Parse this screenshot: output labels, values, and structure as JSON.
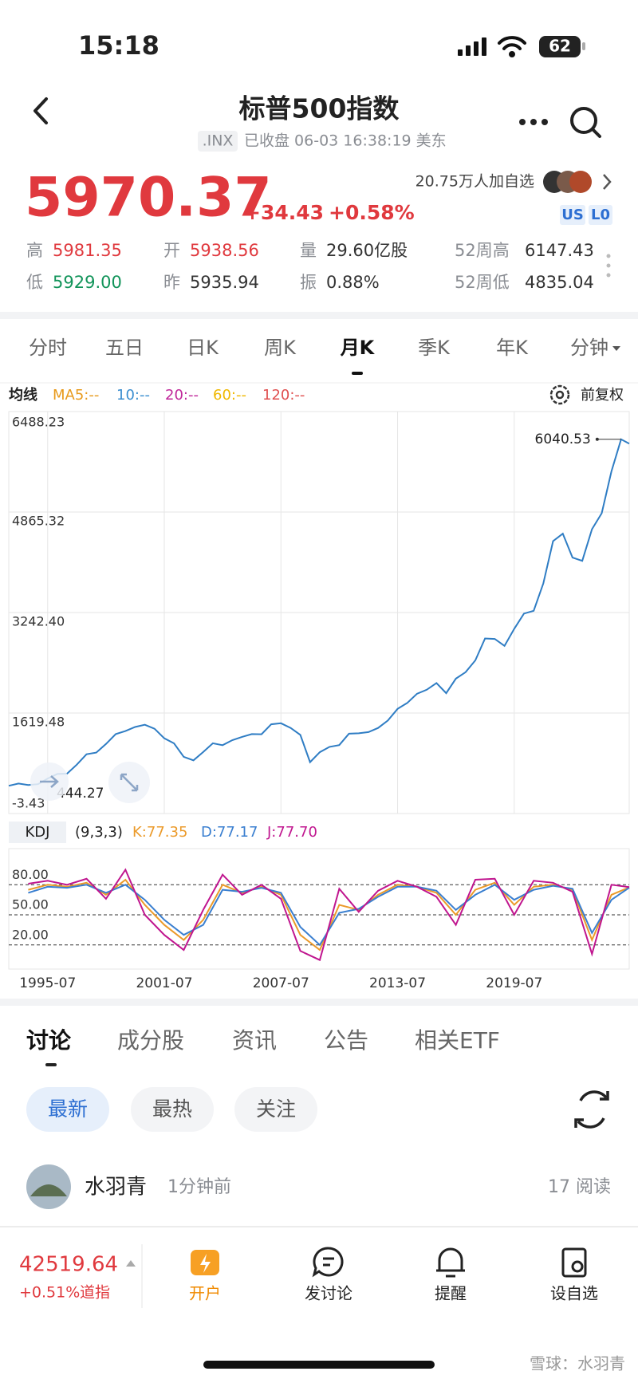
{
  "status_bar": {
    "time": "15:18",
    "battery": "62"
  },
  "header": {
    "title": "标普500指数",
    "code": ".INX",
    "status": "已收盘 06-03 16:38:19 美东"
  },
  "quote": {
    "price": "5970.37",
    "change": "+34.43",
    "change_pct": "+0.58%",
    "followers": "20.75万人加自选",
    "badges": [
      "US",
      "L0"
    ],
    "stats": [
      {
        "label": "高",
        "value": "5981.35"
      },
      {
        "label": "开",
        "value": "5938.56"
      },
      {
        "label": "量",
        "value": "29.60亿股"
      },
      {
        "label": "52周高",
        "value": "6147.43"
      },
      {
        "label": "低",
        "value": "5929.00"
      },
      {
        "label": "昨",
        "value": "5935.94"
      },
      {
        "label": "振",
        "value": "0.88%"
      },
      {
        "label": "52周低",
        "value": "4835.04"
      }
    ]
  },
  "period_tabs": [
    "分时",
    "五日",
    "日K",
    "周K",
    "月K",
    "季K",
    "年K",
    "分钟"
  ],
  "ma_legend": {
    "label": "均线",
    "items": [
      {
        "text": "MA5:--",
        "color": "#e89a1c"
      },
      {
        "text": "10:--",
        "color": "#3a8ed0"
      },
      {
        "text": "20:--",
        "color": "#c0279a"
      },
      {
        "text": "60:--",
        "color": "#f0b800"
      },
      {
        "text": "120:--",
        "color": "#e05050"
      }
    ]
  },
  "adjust": "前复权",
  "chart_data": [
    {
      "type": "line",
      "color": "#2f7dc4",
      "grid": true,
      "x": [
        "1993-07",
        "1994-01",
        "1994-07",
        "1995-01",
        "1995-07",
        "1996-01",
        "1996-07",
        "1997-01",
        "1997-07",
        "1998-01",
        "1998-07",
        "1999-01",
        "1999-07",
        "2000-01",
        "2000-07",
        "2001-01",
        "2001-07",
        "2002-01",
        "2002-07",
        "2003-01",
        "2003-07",
        "2004-01",
        "2004-07",
        "2005-01",
        "2005-07",
        "2006-01",
        "2006-07",
        "2007-01",
        "2007-07",
        "2008-01",
        "2008-07",
        "2009-01",
        "2009-07",
        "2010-01",
        "2010-07",
        "2011-01",
        "2011-07",
        "2012-01",
        "2012-07",
        "2013-01",
        "2013-07",
        "2014-01",
        "2014-07",
        "2015-01",
        "2015-07",
        "2016-01",
        "2016-07",
        "2017-01",
        "2017-07",
        "2018-01",
        "2018-07",
        "2019-01",
        "2019-07",
        "2020-01",
        "2020-07",
        "2021-01",
        "2021-07",
        "2022-01",
        "2022-07",
        "2023-01",
        "2023-07",
        "2024-01",
        "2024-07",
        "2025-01",
        "2025-06"
      ],
      "values": [
        444.27,
        481,
        458,
        470,
        562,
        636,
        640,
        786,
        954,
        980,
        1120,
        1280,
        1328,
        1394,
        1430,
        1366,
        1211,
        1130,
        912,
        856,
        990,
        1131,
        1101,
        1181,
        1234,
        1280,
        1277,
        1438,
        1455,
        1378,
        1267,
        826,
        987,
        1074,
        1102,
        1286,
        1292,
        1312,
        1379,
        1498,
        1686,
        1783,
        1931,
        1995,
        2104,
        1940,
        2174,
        2279,
        2470,
        2824,
        2816,
        2704,
        2980,
        3226,
        3271,
        3714,
        4395,
        4516,
        4130,
        4077,
        4589,
        4846,
        5522,
        6040.53,
        5970.37
      ],
      "xlim": [
        "1993-07",
        "2025-06"
      ],
      "ylim": [
        -3.43,
        6488.23
      ],
      "yticks": [
        6488.23,
        4865.32,
        {
          "value": 3242.4,
          "label": "3242.40"
        },
        1619.48,
        -3.43
      ],
      "xticks": [
        "1995-07",
        "2001-07",
        "2007-07",
        "2013-07",
        "2019-07"
      ],
      "max_label": 6040.53,
      "min_label": 444.27
    },
    {
      "type": "line",
      "title": "KDJ",
      "params": "(9,3,3)",
      "x": [
        "1994-07",
        "1995-07",
        "1996-07",
        "1997-07",
        "1998-07",
        "1999-07",
        "2000-07",
        "2001-07",
        "2002-07",
        "2003-07",
        "2004-07",
        "2005-07",
        "2006-07",
        "2007-07",
        "2008-07",
        "2009-07",
        "2010-07",
        "2011-07",
        "2012-07",
        "2013-07",
        "2014-07",
        "2015-07",
        "2016-07",
        "2017-07",
        "2018-07",
        "2019-07",
        "2020-07",
        "2021-07",
        "2022-07",
        "2023-07",
        "2024-07",
        "2025-06"
      ],
      "series": [
        {
          "name": "K:77.35",
          "color": "#eb9a2a",
          "values": [
            75,
            80,
            78,
            82,
            70,
            85,
            60,
            40,
            25,
            45,
            80,
            72,
            78,
            70,
            30,
            15,
            60,
            55,
            70,
            80,
            78,
            72,
            50,
            75,
            82,
            60,
            78,
            80,
            75,
            25,
            70,
            77.35
          ]
        },
        {
          "name": "D:77.17",
          "color": "#3a7fd0",
          "values": [
            72,
            78,
            77,
            80,
            72,
            80,
            65,
            45,
            30,
            40,
            75,
            73,
            77,
            72,
            38,
            20,
            52,
            56,
            68,
            78,
            78,
            74,
            55,
            70,
            80,
            65,
            75,
            79,
            76,
            32,
            65,
            77.17
          ]
        },
        {
          "name": "J:77.70",
          "color": "#c0168f",
          "values": [
            81,
            84,
            80,
            86,
            66,
            95,
            50,
            30,
            15,
            55,
            90,
            70,
            80,
            66,
            14,
            5,
            76,
            53,
            74,
            84,
            78,
            68,
            40,
            85,
            86,
            50,
            84,
            82,
            73,
            11,
            80,
            77.7
          ]
        }
      ],
      "xlim": [
        "1993-07",
        "2025-06"
      ],
      "ylim": [
        -4,
        116
      ],
      "yticks": [
        {
          "value": 80,
          "label": "80.00"
        },
        {
          "value": 50,
          "label": "50.00"
        },
        {
          "value": 20,
          "label": "20.00"
        }
      ]
    }
  ],
  "discussion": {
    "tabs": [
      "讨论",
      "成分股",
      "资讯",
      "公告",
      "相关ETF"
    ],
    "filters": [
      "最新",
      "最热",
      "关注"
    ],
    "post": {
      "user": "水羽青",
      "time": "1分钟前",
      "reads": "17 阅读"
    }
  },
  "bottom_bar": {
    "index": {
      "value": "42519.64",
      "change": "+0.51%",
      "name": "道指"
    },
    "actions": [
      "开户",
      "发讨论",
      "提醒",
      "设自选"
    ]
  },
  "watermark": "雪球：水羽青"
}
